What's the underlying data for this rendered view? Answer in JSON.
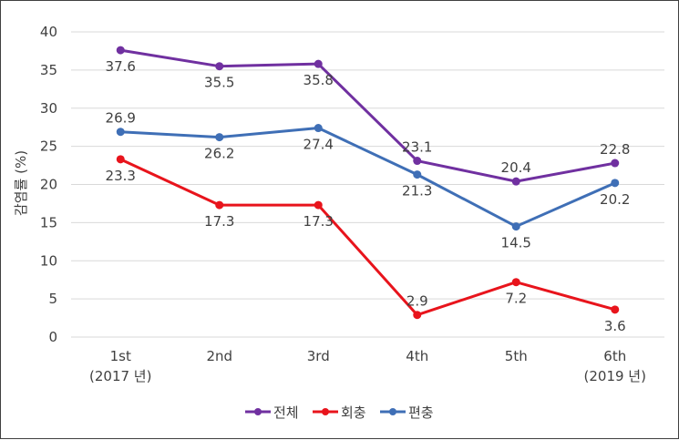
{
  "chart_data": {
    "type": "line",
    "title": "",
    "xlabel": "",
    "ylabel": "감염률 (%)",
    "ylim": [
      0,
      40
    ],
    "yticks": [
      0,
      5,
      10,
      15,
      20,
      25,
      30,
      35,
      40
    ],
    "grid": true,
    "legend_position": "bottom",
    "categories": [
      [
        "1st",
        "(2017 년)"
      ],
      [
        "2nd"
      ],
      [
        "3rd"
      ],
      [
        "4th"
      ],
      [
        "5th"
      ],
      [
        "6th",
        "(2019 년)"
      ]
    ],
    "series": [
      {
        "name": "전체",
        "color": "#7030a0",
        "values": [
          37.6,
          35.5,
          35.8,
          23.1,
          20.4,
          22.8
        ],
        "label_pos": [
          "below",
          "below",
          "below",
          "above",
          "above",
          "above"
        ]
      },
      {
        "name": "회충",
        "color": "#e8141c",
        "values": [
          23.3,
          17.3,
          17.3,
          2.9,
          7.2,
          3.6
        ],
        "label_pos": [
          "below",
          "below",
          "below",
          "above",
          "below",
          "below"
        ]
      },
      {
        "name": "편충",
        "color": "#3f6fb6",
        "values": [
          26.9,
          26.2,
          27.4,
          21.3,
          14.5,
          20.2
        ],
        "label_pos": [
          "above",
          "below",
          "below",
          "below",
          "below",
          "below"
        ]
      }
    ]
  }
}
